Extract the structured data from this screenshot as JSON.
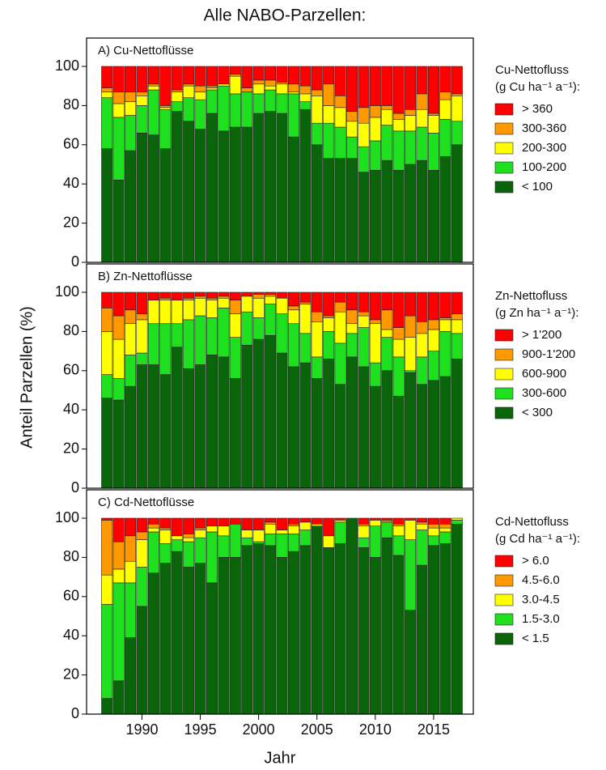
{
  "title": "Alle NABO-Parzellen:",
  "ylabel": "Anteil Parzellen (%)",
  "xlabel": "Jahr",
  "chart_data": [
    {
      "type": "bar",
      "stacked": true,
      "title": "A) Cu-Nettoflüsse",
      "legend_title": [
        "Cu-Nettofluss",
        "(g Cu ha⁻¹ a⁻¹):"
      ],
      "x": [
        1987,
        1988,
        1989,
        1990,
        1991,
        1992,
        1993,
        1994,
        1995,
        1996,
        1997,
        1998,
        1999,
        2000,
        2001,
        2002,
        2003,
        2004,
        2005,
        2006,
        2007,
        2008,
        2009,
        2010,
        2011,
        2012,
        2013,
        2014,
        2015,
        2016,
        2017
      ],
      "xlim": [
        1986.5,
        2017.5
      ],
      "ylim": [
        0,
        100
      ],
      "yticks": [
        0,
        20,
        40,
        60,
        80,
        100
      ],
      "series": [
        {
          "name": "< 100",
          "color": "#0a640a",
          "values": [
            58,
            42,
            57,
            66,
            65,
            58,
            77,
            72,
            68,
            76,
            67,
            69,
            69,
            76,
            77,
            76,
            64,
            78,
            60,
            53,
            53,
            53,
            46,
            47,
            52,
            47,
            50,
            52,
            47,
            54,
            60
          ]
        },
        {
          "name": "100-200",
          "color": "#1ee01e",
          "values": [
            26,
            32,
            18,
            14,
            23,
            20,
            5,
            12,
            15,
            12,
            23,
            17,
            18,
            10,
            11,
            10,
            22,
            4,
            11,
            18,
            16,
            11,
            13,
            15,
            18,
            20,
            17,
            17,
            19,
            19,
            12
          ]
        },
        {
          "name": "200-300",
          "color": "#ffff00",
          "values": [
            3,
            7,
            7,
            5,
            2,
            1,
            5,
            6,
            4,
            1,
            1,
            9,
            0,
            5,
            2,
            5,
            1,
            4,
            14,
            9,
            10,
            8,
            12,
            12,
            8,
            6,
            8,
            9,
            9,
            10,
            13
          ]
        },
        {
          "name": "300-360",
          "color": "#ff9900",
          "values": [
            2,
            6,
            5,
            2,
            1,
            1,
            1,
            1,
            3,
            1,
            0,
            1,
            2,
            2,
            3,
            1,
            4,
            4,
            3,
            11,
            6,
            5,
            8,
            6,
            2,
            3,
            3,
            8,
            1,
            4,
            1
          ]
        },
        {
          "name": "> 360",
          "color": "#ff0000",
          "values": [
            11,
            13,
            13,
            13,
            9,
            20,
            12,
            9,
            10,
            10,
            9,
            4,
            11,
            7,
            7,
            8,
            9,
            10,
            12,
            9,
            15,
            23,
            21,
            20,
            20,
            24,
            22,
            14,
            24,
            13,
            14
          ]
        }
      ]
    },
    {
      "type": "bar",
      "stacked": true,
      "title": "B) Zn-Nettoflüsse",
      "legend_title": [
        "Zn-Nettofluss",
        "(g Zn ha⁻¹ a⁻¹):"
      ],
      "x": [
        1987,
        1988,
        1989,
        1990,
        1991,
        1992,
        1993,
        1994,
        1995,
        1996,
        1997,
        1998,
        1999,
        2000,
        2001,
        2002,
        2003,
        2004,
        2005,
        2006,
        2007,
        2008,
        2009,
        2010,
        2011,
        2012,
        2013,
        2014,
        2015,
        2016,
        2017
      ],
      "xlim": [
        1986.5,
        2017.5
      ],
      "ylim": [
        0,
        100
      ],
      "yticks": [
        0,
        20,
        40,
        60,
        80,
        100
      ],
      "series": [
        {
          "name": "< 300",
          "color": "#0a640a",
          "values": [
            46,
            45,
            52,
            63,
            63,
            58,
            72,
            61,
            63,
            68,
            67,
            56,
            73,
            76,
            78,
            69,
            62,
            64,
            56,
            66,
            53,
            67,
            62,
            52,
            60,
            47,
            59,
            53,
            55,
            57,
            66
          ]
        },
        {
          "name": "300-600",
          "color": "#1ee01e",
          "values": [
            12,
            11,
            16,
            6,
            21,
            26,
            12,
            25,
            25,
            19,
            25,
            21,
            17,
            11,
            16,
            20,
            22,
            15,
            11,
            14,
            21,
            12,
            20,
            12,
            17,
            20,
            1,
            14,
            15,
            23,
            13
          ]
        },
        {
          "name": "600-900",
          "color": "#ffff00",
          "values": [
            22,
            20,
            16,
            17,
            12,
            12,
            12,
            10,
            9,
            9,
            5,
            12,
            8,
            10,
            4,
            8,
            7,
            15,
            18,
            7,
            16,
            5,
            6,
            20,
            4,
            9,
            17,
            12,
            11,
            6,
            7
          ]
        },
        {
          "name": "900-1'200",
          "color": "#ff9900",
          "values": [
            12,
            12,
            7,
            3,
            0,
            1,
            0,
            1,
            1,
            1,
            1,
            7,
            0,
            2,
            1,
            0,
            2,
            1,
            5,
            1,
            5,
            7,
            2,
            2,
            10,
            6,
            11,
            6,
            5,
            1,
            3
          ]
        },
        {
          "name": "> 1'200",
          "color": "#ff0000",
          "values": [
            8,
            12,
            9,
            11,
            4,
            3,
            4,
            3,
            2,
            3,
            2,
            4,
            2,
            1,
            1,
            3,
            7,
            5,
            10,
            12,
            5,
            9,
            10,
            14,
            9,
            18,
            12,
            15,
            14,
            13,
            11
          ]
        }
      ]
    },
    {
      "type": "bar",
      "stacked": true,
      "title": "C) Cd-Nettoflüsse",
      "legend_title": [
        "Cd-Nettofluss",
        "(g Cd ha⁻¹ a⁻¹):"
      ],
      "x": [
        1987,
        1988,
        1989,
        1990,
        1991,
        1992,
        1993,
        1994,
        1995,
        1996,
        1997,
        1998,
        1999,
        2000,
        2001,
        2002,
        2003,
        2004,
        2005,
        2006,
        2007,
        2008,
        2009,
        2010,
        2011,
        2012,
        2013,
        2014,
        2015,
        2016,
        2017
      ],
      "xlim": [
        1986.5,
        2017.5
      ],
      "xticks": [
        1990,
        1995,
        2000,
        2005,
        2010,
        2015
      ],
      "ylim": [
        0,
        100
      ],
      "yticks": [
        0,
        20,
        40,
        60,
        80,
        100
      ],
      "series": [
        {
          "name": "< 1.5",
          "color": "#0a640a",
          "values": [
            8,
            17,
            39,
            55,
            72,
            77,
            83,
            75,
            77,
            67,
            80,
            80,
            86,
            87,
            86,
            80,
            83,
            86,
            96,
            85,
            87,
            100,
            85,
            80,
            90,
            81,
            53,
            76,
            86,
            87,
            97
          ]
        },
        {
          "name": "1.5-3.0",
          "color": "#1ee01e",
          "values": [
            48,
            50,
            28,
            20,
            21,
            10,
            6,
            13,
            13,
            26,
            11,
            17,
            4,
            1,
            6,
            12,
            9,
            8,
            0,
            0,
            11,
            0,
            5,
            16,
            8,
            10,
            36,
            18,
            5,
            6,
            2
          ]
        },
        {
          "name": "3.0-4.5",
          "color": "#ffff00",
          "values": [
            15,
            7,
            11,
            14,
            2,
            7,
            2,
            2,
            4,
            3,
            5,
            0,
            4,
            6,
            5,
            2,
            4,
            4,
            1,
            6,
            1,
            0,
            6,
            3,
            0,
            5,
            10,
            3,
            4,
            2,
            1
          ]
        },
        {
          "name": "4.5-6.0",
          "color": "#ff9900",
          "values": [
            28,
            14,
            13,
            4,
            2,
            1,
            0,
            2,
            1,
            0,
            0,
            0,
            0,
            0,
            1,
            0,
            1,
            0,
            0,
            0,
            0,
            0,
            1,
            0,
            1,
            1,
            0,
            1,
            2,
            2,
            0
          ]
        },
        {
          "name": "> 6.0",
          "color": "#ff0000",
          "values": [
            1,
            12,
            9,
            7,
            3,
            5,
            9,
            8,
            5,
            4,
            4,
            3,
            6,
            6,
            2,
            6,
            3,
            2,
            3,
            9,
            1,
            0,
            3,
            1,
            1,
            3,
            1,
            2,
            3,
            3,
            0
          ]
        }
      ]
    }
  ]
}
